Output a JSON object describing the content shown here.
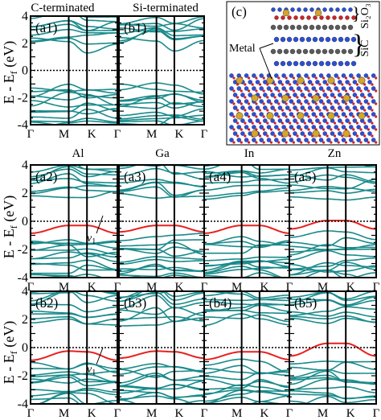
{
  "chart_data": {
    "type": "line",
    "description_of_axes": "Electronic band structures along the Γ–M–K–Γ path",
    "ylabel": "E - E_f (eV)",
    "ylim": [
      -4,
      4
    ],
    "yticks": [
      -4,
      -2,
      0,
      2,
      4
    ],
    "xticks": [
      "Γ",
      "M",
      "K",
      "Γ"
    ],
    "fermi_level": 0,
    "colors": {
      "bands": "#1a8a8a",
      "v1_band": "#e8201e",
      "frame": "#000000",
      "fermi": "#000000"
    },
    "top_row": {
      "column_titles": [
        "C-terminated",
        "Si-terminated"
      ],
      "panels": [
        {
          "label": "(a1)"
        },
        {
          "label": "(b1)"
        }
      ]
    },
    "metal_titles": [
      "Al",
      "Ga",
      "In",
      "Zn"
    ],
    "row_a": [
      {
        "label": "(a2)",
        "v1_band": [
          -0.85,
          -0.3,
          -0.3,
          -0.85
        ]
      },
      {
        "label": "(a3)",
        "v1_band": [
          -0.75,
          -0.3,
          -0.3,
          -0.75
        ]
      },
      {
        "label": "(a4)",
        "v1_band": [
          -0.85,
          -0.3,
          -0.3,
          -0.85
        ]
      },
      {
        "label": "(a5)",
        "v1_band": [
          -0.55,
          0.05,
          0.05,
          -0.55
        ]
      }
    ],
    "row_b": [
      {
        "label": "(b2)",
        "v1_band": [
          -0.9,
          -0.25,
          -0.3,
          -0.9
        ]
      },
      {
        "label": "(b3)",
        "v1_band": [
          -0.75,
          -0.25,
          -0.3,
          -0.75
        ]
      },
      {
        "label": "(b4)",
        "v1_band": [
          -0.85,
          -0.3,
          -0.3,
          -0.85
        ]
      },
      {
        "label": "(b5)",
        "v1_band": [
          -0.6,
          0.3,
          0.3,
          -0.6
        ]
      }
    ],
    "annotations": {
      "v1": "v",
      "v1_sub": "1"
    }
  },
  "structure": {
    "label": "(c)",
    "metal_label": "Metal",
    "layer_oxide": "Si₂O₃",
    "layer_sic": "SiC"
  }
}
